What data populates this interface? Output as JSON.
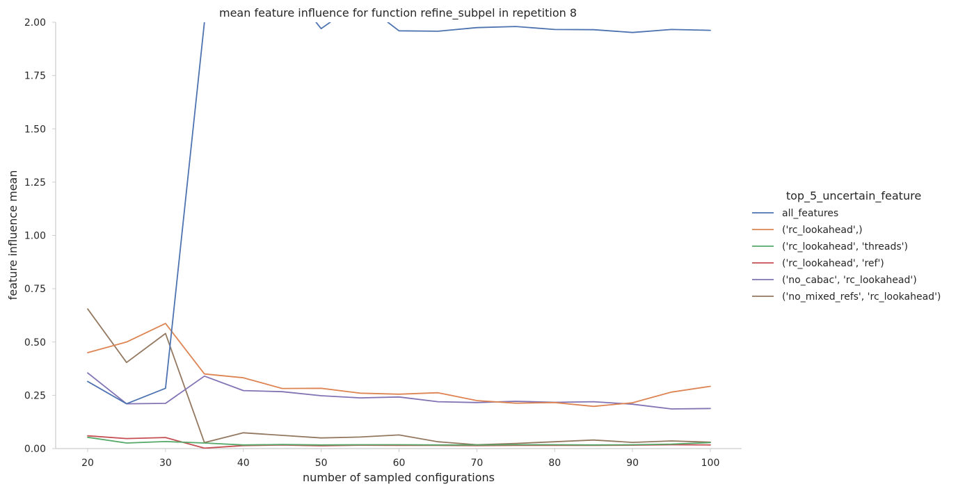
{
  "chart_data": {
    "type": "line",
    "title": "mean feature influence for function refine_subpel in repetition 8",
    "xlabel": "number of sampled configurations",
    "ylabel": "feature influence mean",
    "xlim": [
      16,
      105
    ],
    "ylim": [
      0,
      2
    ],
    "xticks": [
      20,
      30,
      40,
      50,
      60,
      70,
      80,
      90,
      100
    ],
    "yticks": [
      0,
      0.25,
      0.5,
      0.75,
      1.0,
      1.25,
      1.5,
      1.75,
      2.0
    ],
    "ytick_labels": [
      "0.00",
      "0.25",
      "0.50",
      "0.75",
      "1.00",
      "1.25",
      "1.50",
      "1.75",
      "2.00"
    ],
    "grid": false,
    "legend_title": "top_5_uncertain_feature",
    "legend_position": "right",
    "x": [
      20,
      25,
      30,
      35,
      40,
      45,
      50,
      55,
      60,
      65,
      70,
      75,
      80,
      85,
      90,
      95,
      100
    ],
    "series": [
      {
        "name": "all_features",
        "color": "#4c72b0",
        "values": [
          0.315,
          0.21,
          0.283,
          2.0,
          2.25,
          2.2,
          1.97,
          2.1,
          1.96,
          1.958,
          1.975,
          1.98,
          1.966,
          1.965,
          1.952,
          1.966,
          1.962
        ]
      },
      {
        "name": "('rc_lookahead',)",
        "color": "#dd8452",
        "values": [
          0.45,
          0.5,
          0.587,
          0.35,
          0.332,
          0.282,
          0.283,
          0.26,
          0.255,
          0.262,
          0.225,
          0.213,
          0.216,
          0.198,
          0.215,
          0.265,
          0.292
        ]
      },
      {
        "name": "('rc_lookahead', 'threads')",
        "color": "#55a868",
        "values": [
          0.053,
          0.026,
          0.033,
          0.026,
          0.017,
          0.019,
          0.017,
          0.018,
          0.018,
          0.017,
          0.017,
          0.018,
          0.018,
          0.017,
          0.018,
          0.021,
          0.028
        ]
      },
      {
        "name": "('rc_lookahead', 'ref')",
        "color": "#c44e52",
        "values": [
          0.06,
          0.047,
          0.052,
          0.002,
          0.014,
          0.017,
          0.013,
          0.016,
          0.015,
          0.015,
          0.014,
          0.015,
          0.015,
          0.015,
          0.016,
          0.018,
          0.017
        ]
      },
      {
        "name": "('no_cabac', 'rc_lookahead')",
        "color": "#8172b3",
        "values": [
          0.355,
          0.21,
          0.212,
          0.34,
          0.272,
          0.267,
          0.248,
          0.238,
          0.242,
          0.22,
          0.216,
          0.222,
          0.217,
          0.22,
          0.208,
          0.186,
          0.188
        ]
      },
      {
        "name": "('no_mixed_refs', 'rc_lookahead')",
        "color": "#937860",
        "values": [
          0.655,
          0.404,
          0.54,
          0.028,
          0.074,
          0.062,
          0.05,
          0.054,
          0.064,
          0.032,
          0.018,
          0.024,
          0.032,
          0.04,
          0.029,
          0.036,
          0.03
        ]
      }
    ]
  }
}
